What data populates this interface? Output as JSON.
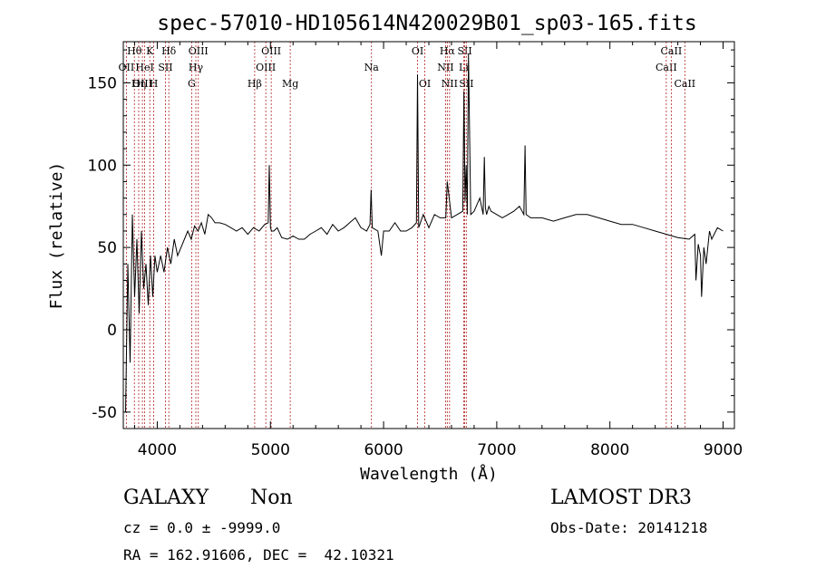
{
  "chart_data": {
    "type": "line",
    "title": "spec-57010-HD105614N420029B01_sp03-165.fits",
    "xlabel": "Wavelength (Å)",
    "ylabel": "Flux (relative)",
    "xlim": [
      3700,
      9100
    ],
    "ylim": [
      -60,
      175
    ],
    "xticks": [
      4000,
      5000,
      6000,
      7000,
      8000,
      9000
    ],
    "yticks": [
      -50,
      0,
      50,
      100,
      150
    ],
    "line_color": "#000000",
    "marker_color": "#b22222",
    "grid": false,
    "series": [
      {
        "x": [
          3720,
          3740,
          3760,
          3780,
          3800,
          3820,
          3840,
          3860,
          3880,
          3900,
          3920,
          3940,
          3960,
          3980,
          4000,
          4030,
          4060,
          4090,
          4120,
          4150,
          4180,
          4210,
          4240,
          4270,
          4300,
          4330,
          4360,
          4390,
          4420,
          4450,
          4480,
          4510,
          4550,
          4600,
          4650,
          4700,
          4750,
          4800,
          4850,
          4900,
          4950,
          4980,
          4990,
          5000,
          5010,
          5030,
          5060,
          5100,
          5150,
          5200,
          5250,
          5300,
          5350,
          5400,
          5450,
          5500,
          5550,
          5600,
          5650,
          5700,
          5750,
          5800,
          5850,
          5880,
          5890,
          5900,
          5950,
          5980,
          6000,
          6050,
          6100,
          6150,
          6200,
          6250,
          6290,
          6300,
          6310,
          6350,
          6400,
          6450,
          6500,
          6550,
          6563,
          6600,
          6650,
          6700,
          6710,
          6720,
          6730,
          6740,
          6750,
          6770,
          6800,
          6850,
          6880,
          6890,
          6900,
          6910,
          6930,
          6950,
          7000,
          7050,
          7100,
          7150,
          7200,
          7240,
          7250,
          7260,
          7300,
          7400,
          7500,
          7600,
          7700,
          7800,
          7900,
          8000,
          8100,
          8200,
          8300,
          8400,
          8500,
          8600,
          8700,
          8750,
          8760,
          8780,
          8800,
          8810,
          8830,
          8850,
          8880,
          8900,
          8950,
          9000
        ],
        "y": [
          -50,
          40,
          -20,
          70,
          20,
          55,
          10,
          60,
          25,
          40,
          15,
          45,
          20,
          45,
          35,
          45,
          35,
          50,
          40,
          55,
          45,
          50,
          55,
          60,
          55,
          63,
          60,
          65,
          58,
          70,
          68,
          65,
          65,
          64,
          62,
          60,
          62,
          58,
          62,
          60,
          64,
          65,
          100,
          62,
          60,
          60,
          62,
          56,
          55,
          57,
          55,
          55,
          58,
          60,
          62,
          58,
          64,
          60,
          62,
          65,
          68,
          62,
          60,
          64,
          85,
          62,
          60,
          45,
          60,
          60,
          65,
          60,
          60,
          62,
          65,
          155,
          62,
          70,
          62,
          70,
          68,
          68,
          90,
          68,
          70,
          72,
          145,
          78,
          100,
          70,
          168,
          70,
          72,
          80,
          70,
          105,
          74,
          70,
          75,
          72,
          70,
          68,
          70,
          72,
          75,
          70,
          112,
          70,
          68,
          68,
          66,
          68,
          70,
          70,
          68,
          66,
          64,
          64,
          62,
          60,
          58,
          56,
          55,
          58,
          30,
          52,
          45,
          20,
          50,
          40,
          60,
          55,
          62,
          60
        ]
      }
    ],
    "spectral_lines": [
      {
        "label": "OII",
        "x": 3727,
        "row": 1
      },
      {
        "label": "Hθ",
        "x": 3798,
        "row": 0
      },
      {
        "label": "Hη",
        "x": 3836,
        "row": 2
      },
      {
        "label": "OIII",
        "x": 3869,
        "row": 2
      },
      {
        "label": "HeI",
        "x": 3889,
        "row": 1
      },
      {
        "label": "K",
        "x": 3934,
        "row": 0
      },
      {
        "label": "H",
        "x": 3969,
        "row": 2
      },
      {
        "label": "SII",
        "x": 4072,
        "row": 1
      },
      {
        "label": "Hδ",
        "x": 4102,
        "row": 0
      },
      {
        "label": "G",
        "x": 4304,
        "row": 2
      },
      {
        "label": "Hγ",
        "x": 4341,
        "row": 1
      },
      {
        "label": "OIII",
        "x": 4363,
        "row": 0
      },
      {
        "label": "Hβ",
        "x": 4861,
        "row": 2
      },
      {
        "label": "OIII",
        "x": 4959,
        "row": 1
      },
      {
        "label": "OIII",
        "x": 5007,
        "row": 0
      },
      {
        "label": "Mg",
        "x": 5175,
        "row": 2
      },
      {
        "label": "Na",
        "x": 5893,
        "row": 1
      },
      {
        "label": "OI",
        "x": 6300,
        "row": 0
      },
      {
        "label": "OI",
        "x": 6364,
        "row": 2
      },
      {
        "label": "NII",
        "x": 6548,
        "row": 1
      },
      {
        "label": "Hα",
        "x": 6563,
        "row": 0
      },
      {
        "label": "NII",
        "x": 6583,
        "row": 2
      },
      {
        "label": "SII",
        "x": 6717,
        "row": 0
      },
      {
        "label": "SII",
        "x": 6731,
        "row": 2
      },
      {
        "label": "Li",
        "x": 6708,
        "row": 1
      },
      {
        "label": "CaII",
        "x": 8498,
        "row": 1
      },
      {
        "label": "CaII",
        "x": 8542,
        "row": 0
      },
      {
        "label": "CaII",
        "x": 8662,
        "row": 2
      }
    ]
  },
  "info": {
    "class": "GALAXY",
    "subclass": "Non",
    "survey": "LAMOST DR3",
    "redshift_line": "cz = 0.0 ± -9999.0",
    "obs_date": "Obs-Date: 20141218",
    "coords_line": "RA = 162.91606, DEC =  42.10321"
  }
}
